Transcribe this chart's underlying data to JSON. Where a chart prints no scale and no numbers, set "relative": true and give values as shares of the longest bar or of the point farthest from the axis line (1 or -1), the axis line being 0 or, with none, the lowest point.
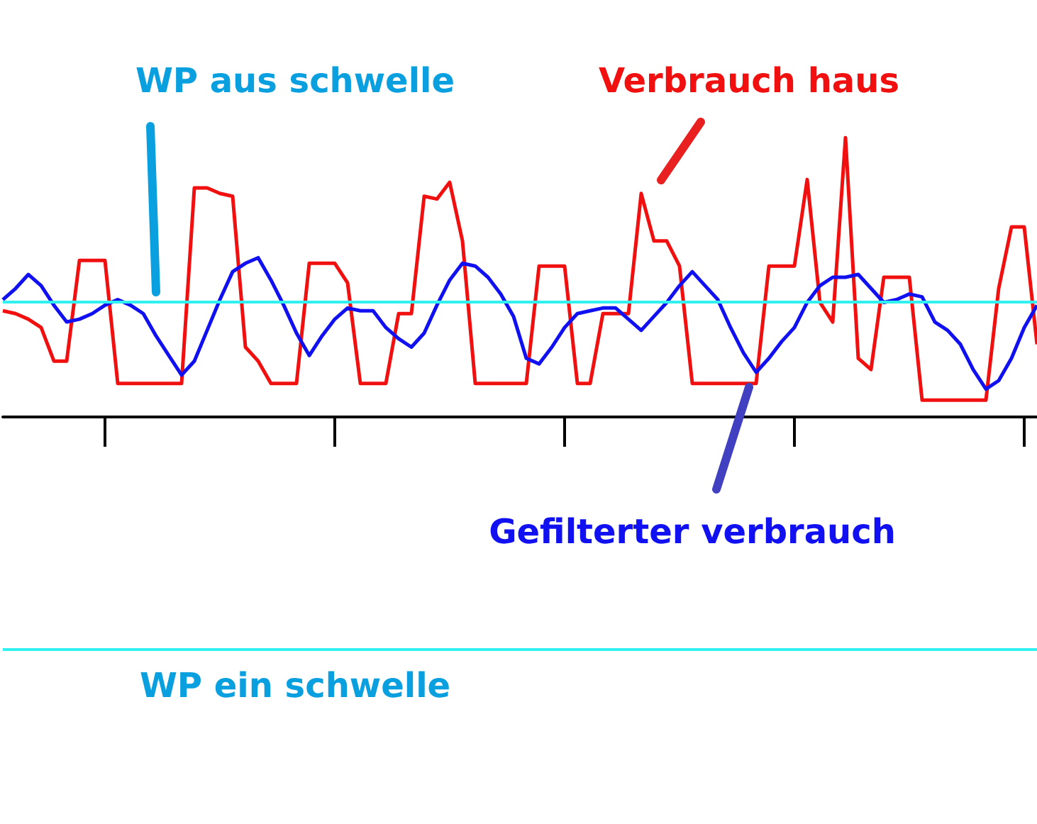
{
  "chart_data": {
    "type": "line",
    "relative": true,
    "tick_labels": false,
    "categories": [
      null,
      null,
      null,
      null,
      null,
      null,
      null,
      null,
      null,
      null,
      null,
      null,
      null,
      null,
      null,
      null,
      null,
      null,
      null,
      null,
      null,
      null,
      null,
      null,
      null,
      null,
      null,
      null,
      null,
      null,
      null,
      null,
      null,
      null,
      null,
      null,
      null,
      null,
      null,
      null,
      null,
      null,
      null,
      null,
      null,
      null,
      null,
      null,
      null,
      null,
      null,
      null,
      null,
      null,
      null,
      null,
      null,
      null,
      null,
      null,
      null,
      null,
      null,
      null,
      null,
      null,
      null,
      null,
      null,
      null,
      null,
      null,
      null,
      null,
      null,
      null,
      null,
      null,
      null,
      null,
      null,
      null
    ],
    "series": [
      {
        "name": "Verbrauch haus",
        "color": "#f01010",
        "values": [
          0.38,
          0.37,
          0.35,
          0.32,
          0.2,
          0.2,
          0.56,
          0.56,
          0.56,
          0.12,
          0.12,
          0.12,
          0.12,
          0.12,
          0.12,
          0.82,
          0.82,
          0.8,
          0.79,
          0.25,
          0.2,
          0.12,
          0.12,
          0.12,
          0.55,
          0.55,
          0.55,
          0.48,
          0.12,
          0.12,
          0.12,
          0.37,
          0.37,
          0.79,
          0.78,
          0.84,
          0.63,
          0.12,
          0.12,
          0.12,
          0.12,
          0.12,
          0.54,
          0.54,
          0.54,
          0.12,
          0.12,
          0.37,
          0.37,
          0.37,
          0.8,
          0.63,
          0.63,
          0.54,
          0.12,
          0.12,
          0.12,
          0.12,
          0.12,
          0.12,
          0.54,
          0.54,
          0.54,
          0.85,
          0.41,
          0.34,
          1.0,
          0.21,
          0.17,
          0.5,
          0.5,
          0.5,
          0.06,
          0.06,
          0.06,
          0.06,
          0.06,
          0.06,
          0.46,
          0.68,
          0.68,
          0.26
        ]
      },
      {
        "name": "Gefilterter verbrauch",
        "color": "#1010f0",
        "values": [
          0.42,
          0.46,
          0.51,
          0.47,
          0.4,
          0.34,
          0.35,
          0.37,
          0.4,
          0.42,
          0.4,
          0.37,
          0.29,
          0.22,
          0.15,
          0.2,
          0.31,
          0.42,
          0.52,
          0.55,
          0.57,
          0.49,
          0.4,
          0.3,
          0.22,
          0.29,
          0.35,
          0.39,
          0.38,
          0.38,
          0.32,
          0.28,
          0.25,
          0.3,
          0.4,
          0.49,
          0.55,
          0.54,
          0.5,
          0.44,
          0.36,
          0.21,
          0.19,
          0.25,
          0.32,
          0.37,
          0.38,
          0.39,
          0.39,
          0.35,
          0.31,
          0.36,
          0.41,
          0.47,
          0.52,
          0.47,
          0.42,
          0.32,
          0.23,
          0.16,
          0.21,
          0.27,
          0.32,
          0.41,
          0.47,
          0.5,
          0.5,
          0.51,
          0.46,
          0.41,
          0.42,
          0.44,
          0.43,
          0.34,
          0.31,
          0.26,
          0.17,
          0.1,
          0.13,
          0.21,
          0.32,
          0.4
        ]
      }
    ],
    "ref_lines": [
      {
        "axis": "y",
        "value": 0.41,
        "label": "WP aus schwelle",
        "color": "#30f0f0"
      },
      {
        "axis": "y",
        "value": -0.83,
        "label": "WP ein schwelle",
        "color": "#30f0f0"
      }
    ]
  }
}
